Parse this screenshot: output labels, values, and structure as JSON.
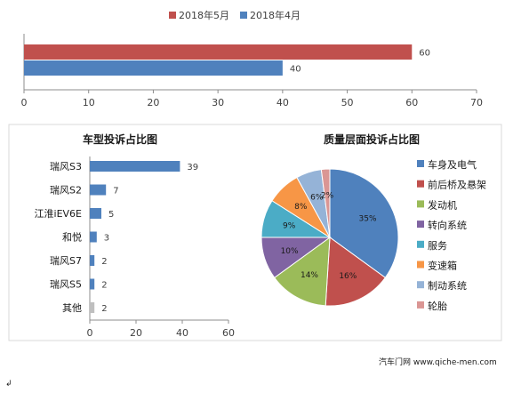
{
  "chart_data": [
    {
      "type": "bar",
      "orientation": "horizontal",
      "series": [
        {
          "name": "2018年5月",
          "values": [
            60
          ],
          "color": "#c0504d"
        },
        {
          "name": "2018年4月",
          "values": [
            40
          ],
          "color": "#4f81bd"
        }
      ],
      "xlim": [
        0,
        70
      ],
      "xticks": [
        "0",
        "10",
        "20",
        "30",
        "40",
        "50",
        "60",
        "70"
      ],
      "legend_position": "top",
      "grid": false
    },
    {
      "type": "bar",
      "orientation": "horizontal",
      "title": "车型投诉占比图",
      "categories": [
        "瑞风S3",
        "瑞风S2",
        "江淮iEV6E",
        "和悦",
        "瑞风S7",
        "瑞风S5",
        "其他"
      ],
      "values": [
        39,
        7,
        5,
        3,
        2,
        2,
        2
      ],
      "value_labels": [
        "39",
        "7",
        "5",
        "3",
        "2",
        "2",
        "2"
      ],
      "colors": [
        "#4f81bd",
        "#4f81bd",
        "#4f81bd",
        "#4f81bd",
        "#4f81bd",
        "#4f81bd",
        "#bfbfbf"
      ],
      "xlim": [
        0,
        60
      ],
      "xticks": [
        "0",
        "20",
        "40",
        "60"
      ],
      "grid": false
    },
    {
      "type": "pie",
      "title": "质量层面投诉占比图",
      "labels": [
        "车身及电气",
        "前后桥及悬架",
        "发动机",
        "转向系统",
        "服务",
        "变速箱",
        "制动系统",
        "轮胎"
      ],
      "values": [
        35,
        16,
        14,
        10,
        9,
        8,
        6,
        2
      ],
      "value_labels": [
        "35%",
        "16%",
        "14%",
        "10%",
        "9%",
        "8%",
        "6%",
        "2%"
      ],
      "colors": [
        "#4f81bd",
        "#c0504d",
        "#9bbb59",
        "#8064a2",
        "#4bacc6",
        "#f79646",
        "#95b3d7",
        "#da9694"
      ],
      "legend_position": "right"
    }
  ],
  "credit": "汽车门网 www.qiche-men.com",
  "footer_mark": "↲"
}
